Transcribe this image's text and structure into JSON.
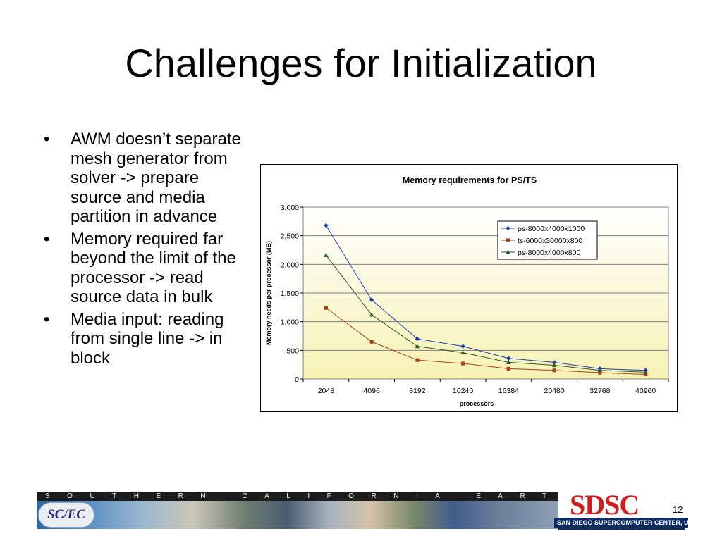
{
  "slide": {
    "title": "Challenges for Initialization",
    "bullets": [
      "AWM doesn’t separate mesh generator from solver -> prepare source and media partition in advance",
      "Memory required far beyond the limit of the processor -> read source data in bulk",
      "Media input: reading from single line -> in block"
    ],
    "page_number": "12"
  },
  "footer": {
    "banner_text": "SOUTHERN CALIFORNIA EARTHQUAKE CENTER",
    "scec_logo_text": "SC/EC",
    "sdsc_logo_text": "SDSC",
    "sdsc_subtitle": "SAN DIEGO SUPERCOMPUTER CENTER, UCSD"
  },
  "colors": {
    "series_ps1000": "#1f3fb0",
    "series_ts800": "#a8441a",
    "series_ps800": "#2f5a2a",
    "plot_bg_top": "#ffffff",
    "plot_bg_bottom": "#f6f2b4"
  },
  "chart_data": {
    "type": "line",
    "title": "Memory requirements for PS/TS",
    "xlabel": "processors",
    "ylabel": "Memory needs per processor (MB)",
    "categories": [
      "2048",
      "4096",
      "8192",
      "10240",
      "16384",
      "20480",
      "32768",
      "40960"
    ],
    "ylim": [
      0,
      3000
    ],
    "yticks": [
      0,
      500,
      1000,
      1500,
      2000,
      2500,
      3000
    ],
    "ytick_labels": [
      "0",
      "500",
      "1,000",
      "1,500",
      "2,000",
      "2,500",
      "3,000"
    ],
    "grid": true,
    "legend_position": "top-right",
    "series": [
      {
        "name": "ps-8000x4000x1000",
        "marker": "diamond",
        "values": [
          2680,
          1380,
          700,
          570,
          360,
          290,
          180,
          150
        ]
      },
      {
        "name": "ts-6000x30000x800",
        "marker": "square",
        "values": [
          1240,
          650,
          330,
          270,
          180,
          150,
          110,
          80
        ]
      },
      {
        "name": "ps-8000x4000x800",
        "marker": "triangle",
        "values": [
          2160,
          1120,
          570,
          460,
          290,
          240,
          150,
          120
        ]
      }
    ]
  }
}
